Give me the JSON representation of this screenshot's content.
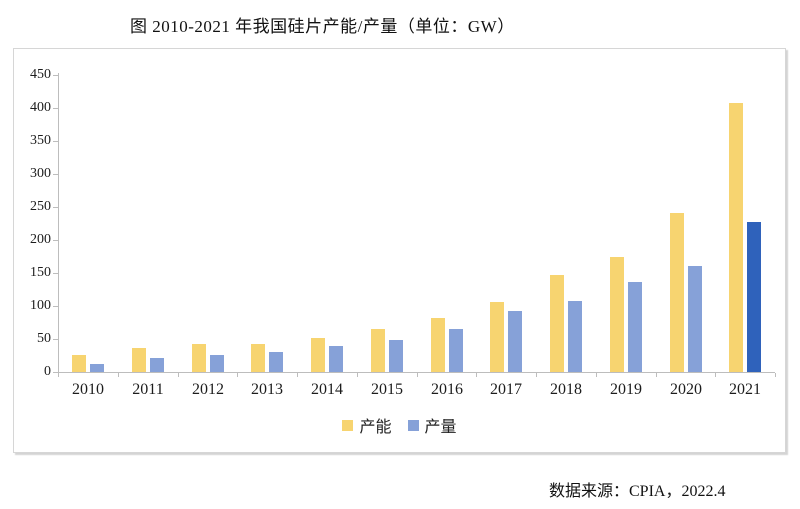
{
  "title": "图 2010-2021 年我国硅片产能/产量（单位：GW）",
  "source_note": "数据来源：CPIA，2022.4",
  "colors": {
    "capacity_bar": "#f7d470",
    "production_bar": "#86a1d8",
    "production_bar_2021_highlight": "#2f62bb",
    "axis": "#bdbdbd",
    "frame_border": "#d6d6d6",
    "text": "#1c1c1c"
  },
  "legend": {
    "items": [
      {
        "label": "产能",
        "color": "#f7d470"
      },
      {
        "label": "产量",
        "color": "#86a1d8"
      }
    ],
    "position": "bottom-center"
  },
  "chart_data": {
    "type": "bar",
    "title": "图 2010-2021 年我国硅片产能/产量（单位：GW）",
    "unit": "GW",
    "categories": [
      "2010",
      "2011",
      "2012",
      "2013",
      "2014",
      "2015",
      "2016",
      "2017",
      "2018",
      "2019",
      "2020",
      "2021"
    ],
    "series": [
      {
        "name": "产能",
        "color": "#f7d470",
        "values": [
          25,
          37,
          42,
          43,
          51,
          65,
          82,
          106,
          147,
          174,
          241,
          407
        ]
      },
      {
        "name": "产量",
        "color": "#86a1d8",
        "values": [
          12,
          21,
          26,
          30,
          39,
          48,
          65,
          93,
          108,
          136,
          161,
          227
        ],
        "highlight": {
          "index": 11,
          "color": "#2f62bb"
        }
      }
    ],
    "xlabel": "",
    "ylabel": "",
    "ylim": [
      0,
      450
    ],
    "yticks": [
      0,
      50,
      100,
      150,
      200,
      250,
      300,
      350,
      400,
      450
    ],
    "grid": false,
    "legend_position": "bottom-center",
    "source": "数据来源：CPIA，2022.4"
  }
}
